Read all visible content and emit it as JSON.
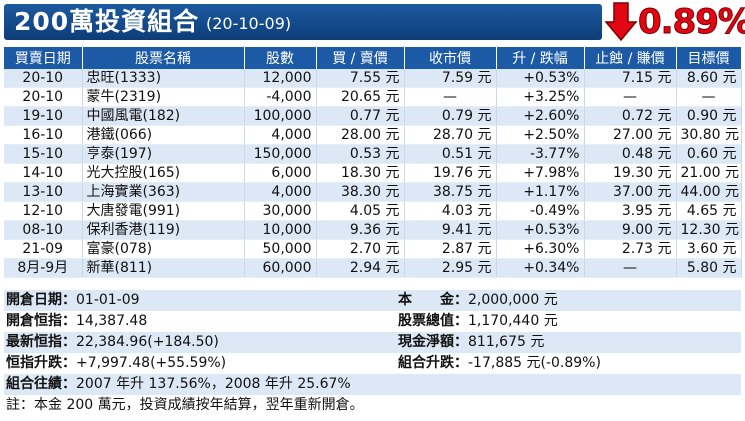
{
  "header": {
    "title": "200萬投資組合",
    "date": "(20-10-09)",
    "performance": "0.89%",
    "performance_arrow": "arrow-down-icon",
    "colors": {
      "title_bg": "#1c5aa0",
      "performance": "#e30613"
    }
  },
  "table": {
    "columns": [
      "買賣日期",
      "股票名稱",
      "股數",
      "買 / 賣價",
      "收市價",
      "升 / 跌幅",
      "止蝕 / 賺價",
      "目標價"
    ],
    "rows": [
      [
        "20-10",
        "忠旺(1333)",
        "12,000",
        "7.55 元",
        "7.59 元",
        "+0.53%",
        "7.15 元",
        "8.60 元"
      ],
      [
        "20-10",
        "蒙牛(2319)",
        "-4,000",
        "20.65 元",
        "—",
        "+3.25%",
        "—",
        "—"
      ],
      [
        "19-10",
        "中國風電(182)",
        "100,000",
        "0.77 元",
        "0.79 元",
        "+2.60%",
        "0.72 元",
        "0.90 元"
      ],
      [
        "16-10",
        "港鐵(066)",
        "4,000",
        "28.00 元",
        "28.70 元",
        "+2.50%",
        "27.00 元",
        "30.80 元"
      ],
      [
        "15-10",
        "亨泰(197)",
        "150,000",
        "0.53 元",
        "0.51 元",
        "-3.77%",
        "0.48 元",
        "0.60 元"
      ],
      [
        "14-10",
        "光大控股(165)",
        "6,000",
        "18.30 元",
        "19.76 元",
        "+7.98%",
        "19.30 元",
        "21.00 元"
      ],
      [
        "13-10",
        "上海實業(363)",
        "4,000",
        "38.30 元",
        "38.75 元",
        "+1.17%",
        "37.00 元",
        "44.00 元"
      ],
      [
        "12-10",
        "大唐發電(991)",
        "30,000",
        "4.05 元",
        "4.03 元",
        "-0.49%",
        "3.95 元",
        "4.65 元"
      ],
      [
        "08-10",
        "保利香港(119)",
        "10,000",
        "9.36 元",
        "9.41 元",
        "+0.53%",
        "9.00 元",
        "12.30 元"
      ],
      [
        "21-09",
        "富豪(078)",
        "50,000",
        "2.70 元",
        "2.87 元",
        "+6.30%",
        "2.73 元",
        "3.60 元"
      ],
      [
        "8月-9月",
        "新華(811)",
        "60,000",
        "2.94 元",
        "2.95 元",
        "+0.34%",
        "—",
        "5.80 元"
      ]
    ]
  },
  "summary": {
    "open_date_label": "開倉日期：",
    "open_date": "01-01-09",
    "capital_label": "本　　金：",
    "capital": "2,000,000 元",
    "open_index_label": "開倉恒指：",
    "open_index": "14,387.48",
    "stock_value_label": "股票總值：",
    "stock_value": "1,170,440 元",
    "latest_index_label": "最新恒指：",
    "latest_index": "22,384.96(+184.50)",
    "cash_label": "現金淨額：",
    "cash": "811,675 元",
    "index_change_label": "恒指升跌：",
    "index_change": "+7,997.48(+55.59%)",
    "portfolio_change_label": "組合升跌：",
    "portfolio_change": "-17,885 元(-0.89%)",
    "record_label": "組合往績：",
    "record": "2007 年升 137.56%，2008 年升 25.67%",
    "note": "註：本金 200 萬元，投資成績按年結算，翌年重新開倉。"
  }
}
